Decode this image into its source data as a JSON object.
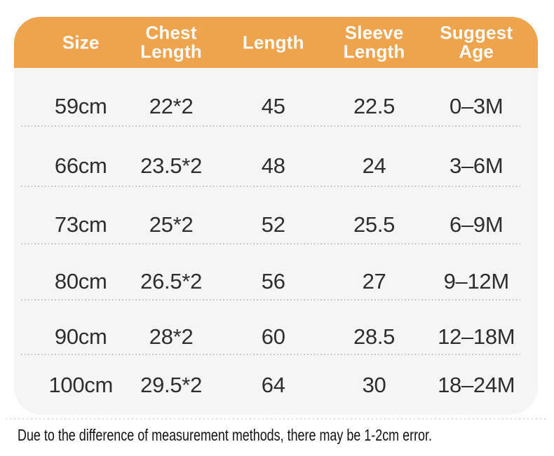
{
  "colors": {
    "page_bg": "#ffffff",
    "header_bg": "#eea34d",
    "header_text": "#ffffff",
    "body_bg": "#f5f5f6",
    "row_text": "#2e2e2e",
    "separator": "#c6c6c6",
    "note_text": "#141414"
  },
  "chart_data": {
    "type": "table",
    "title": "",
    "columns": [
      "Size",
      "Chest Length",
      "Length",
      "Sleeve Length",
      "Suggest Age"
    ],
    "rows": [
      [
        "59cm",
        "22*2",
        "45",
        "22.5",
        "0–3M"
      ],
      [
        "66cm",
        "23.5*2",
        "48",
        "24",
        "3–6M"
      ],
      [
        "73cm",
        "25*2",
        "52",
        "25.5",
        "6–9M"
      ],
      [
        "80cm",
        "26.5*2",
        "56",
        "27",
        "9–12M"
      ],
      [
        "90cm",
        "28*2",
        "60",
        "28.5",
        "12–18M"
      ],
      [
        "100cm",
        "29.5*2",
        "64",
        "30",
        "18–24M"
      ]
    ],
    "note": "Due to the difference of measurement methods, there may be 1-2cm error."
  },
  "table": {
    "headers": [
      "Size",
      "Chest\nLength",
      "Length",
      "Sleeve\nLength",
      "Suggest\nAge"
    ],
    "rows": [
      [
        "59cm",
        "22*2",
        "45",
        "22.5",
        "0–3M"
      ],
      [
        "66cm",
        "23.5*2",
        "48",
        "24",
        "3–6M"
      ],
      [
        "73cm",
        "25*2",
        "52",
        "25.5",
        "6–9M"
      ],
      [
        "80cm",
        "26.5*2",
        "56",
        "27",
        "9–12M"
      ],
      [
        "90cm",
        "28*2",
        "60",
        "28.5",
        "12–18M"
      ],
      [
        "100cm",
        "29.5*2",
        "64",
        "30",
        "18–24M"
      ]
    ]
  },
  "footer": {
    "note": "Due to the difference of measurement methods, there may be 1-2cm error."
  }
}
